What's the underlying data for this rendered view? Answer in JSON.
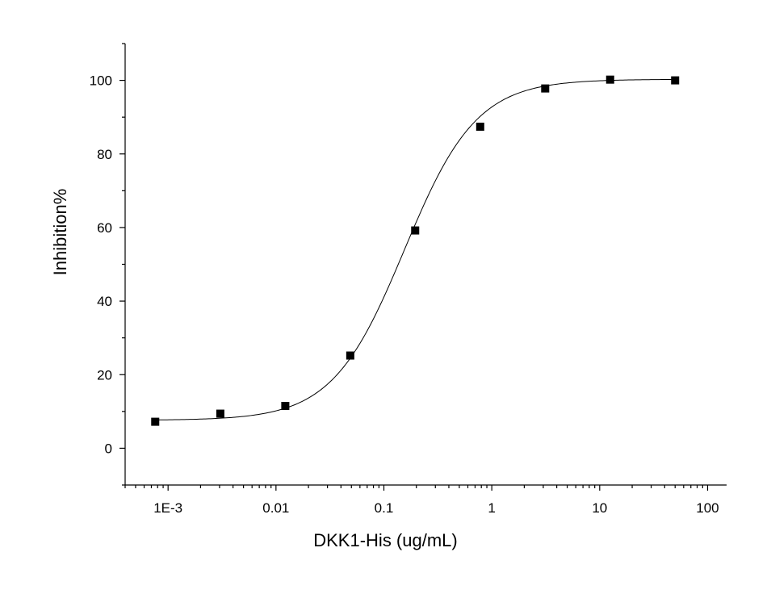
{
  "chart_data": {
    "type": "scatter",
    "xlabel": "DKK1-His (ug/mL)",
    "ylabel": "Inhibition%",
    "x_scale": "log",
    "xlim": [
      0.0004,
      150
    ],
    "ylim": [
      -10,
      110
    ],
    "x_ticks": [
      {
        "value": 0.001,
        "label": "1E-3"
      },
      {
        "value": 0.01,
        "label": "0.01"
      },
      {
        "value": 0.1,
        "label": "0.1"
      },
      {
        "value": 1,
        "label": "1"
      },
      {
        "value": 10,
        "label": "10"
      },
      {
        "value": 100,
        "label": "100"
      }
    ],
    "y_ticks": [
      {
        "value": 0,
        "label": "0"
      },
      {
        "value": 20,
        "label": "20"
      },
      {
        "value": 40,
        "label": "40"
      },
      {
        "value": 60,
        "label": "60"
      },
      {
        "value": 80,
        "label": "80"
      },
      {
        "value": 100,
        "label": "100"
      }
    ],
    "grid": false,
    "points": [
      {
        "x": 0.00076,
        "y": 7.2
      },
      {
        "x": 0.00305,
        "y": 9.4
      },
      {
        "x": 0.0122,
        "y": 11.5
      },
      {
        "x": 0.0488,
        "y": 25.2
      },
      {
        "x": 0.195,
        "y": 59.2
      },
      {
        "x": 0.781,
        "y": 87.4
      },
      {
        "x": 3.125,
        "y": 97.8
      },
      {
        "x": 12.5,
        "y": 100.2
      },
      {
        "x": 50,
        "y": 100.0
      }
    ],
    "fit": {
      "model": "four-parameter logistic",
      "bottom": 7.6,
      "top": 100.3,
      "ec50": 0.155,
      "hill": 1.3
    }
  }
}
